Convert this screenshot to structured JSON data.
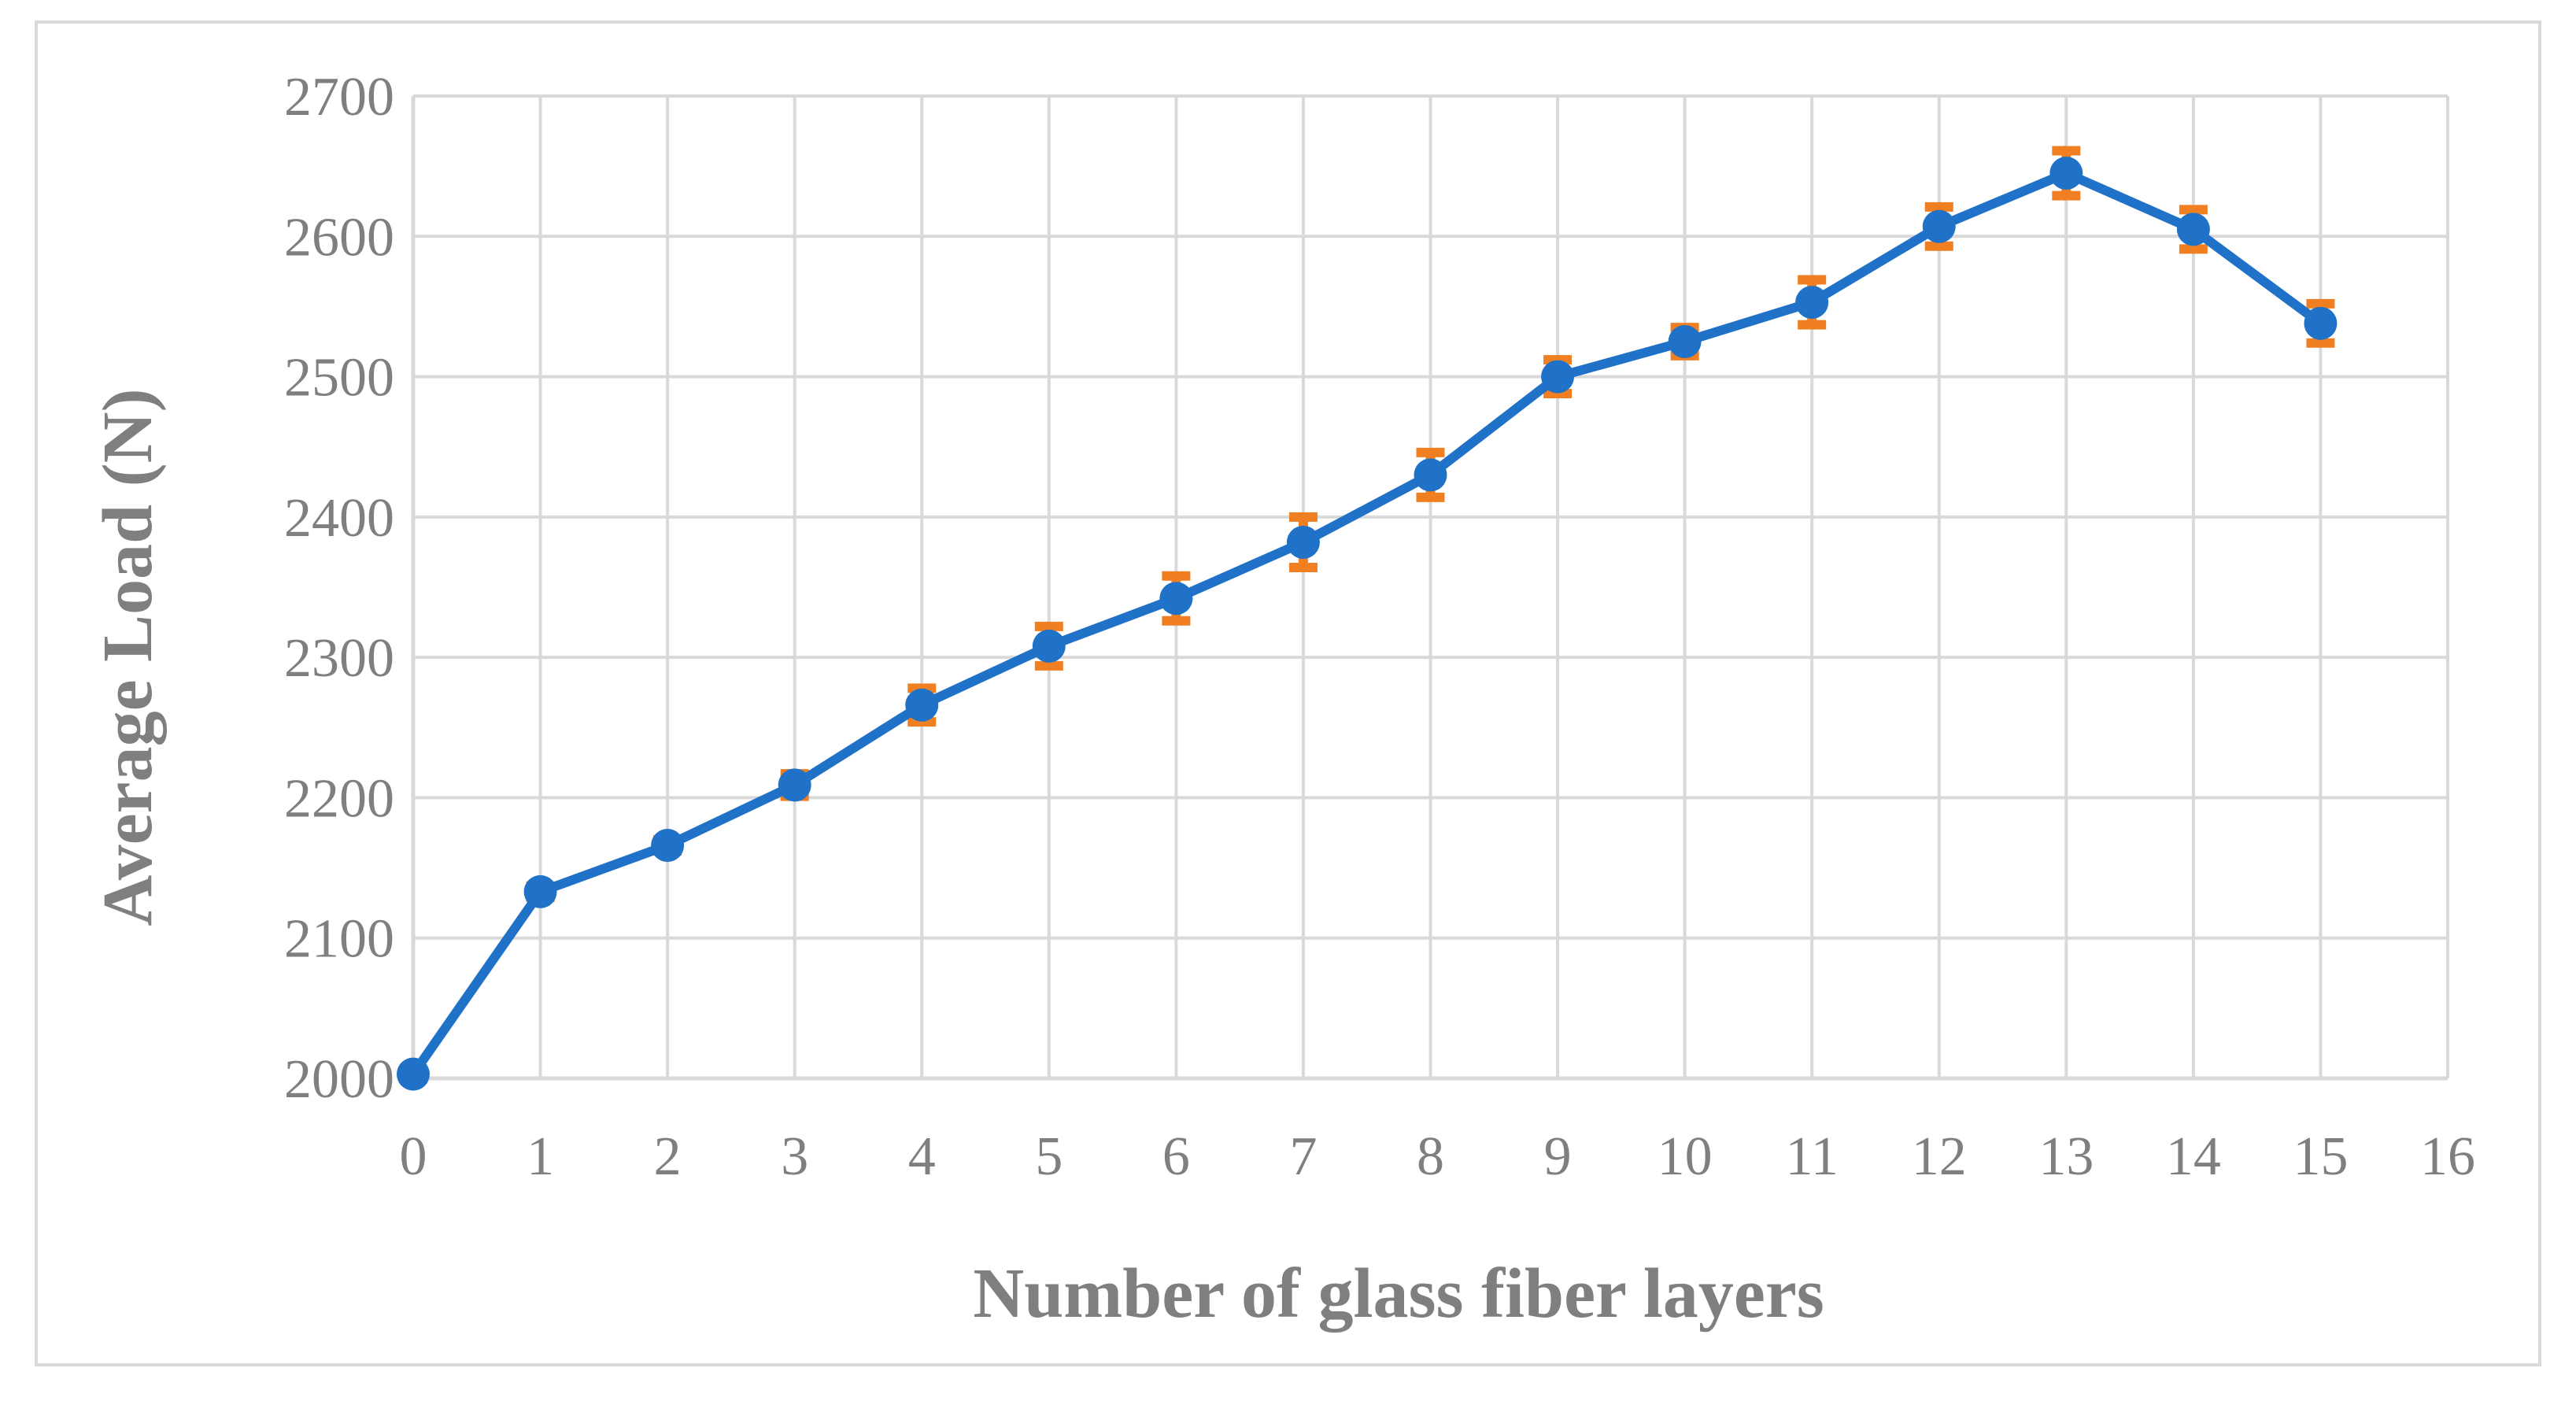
{
  "chart_data": {
    "type": "line",
    "title": "",
    "xlabel": "Number of glass fiber layers",
    "ylabel": "Average Load (N)",
    "xlim": [
      0,
      16
    ],
    "ylim": [
      2000,
      2700
    ],
    "x_ticks": [
      "0",
      "1",
      "2",
      "3",
      "4",
      "5",
      "6",
      "7",
      "8",
      "9",
      "10",
      "11",
      "12",
      "13",
      "14",
      "15",
      "16"
    ],
    "y_ticks": [
      "2000",
      "2100",
      "2200",
      "2300",
      "2400",
      "2500",
      "2600",
      "2700"
    ],
    "grid": true,
    "legend": "none",
    "colors": {
      "line": "#1f72c7",
      "marker": "#1f72c7",
      "error_bar": "#f07f22",
      "grid": "#d9d9d9",
      "text": "#7f7f7f"
    },
    "series": [
      {
        "x": [
          0,
          1,
          2,
          3,
          4,
          5,
          6,
          7,
          8,
          9,
          10,
          11,
          12,
          13,
          14,
          15
        ],
        "values": [
          2003,
          2133,
          2166,
          2209,
          2266,
          2308,
          2342,
          2382,
          2430,
          2500,
          2525,
          2553,
          2607,
          2645,
          2605,
          2538
        ],
        "error": [
          2,
          4,
          4,
          8,
          12,
          14,
          16,
          18,
          16,
          12,
          10,
          16,
          14,
          16,
          14,
          14
        ]
      }
    ]
  }
}
